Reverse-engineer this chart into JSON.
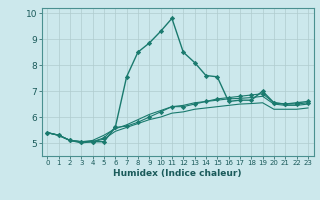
{
  "title": "",
  "xlabel": "Humidex (Indice chaleur)",
  "ylabel": "",
  "background_color": "#cce8ec",
  "grid_color": "#b8d4d8",
  "line_color": "#1a7a6e",
  "xlim": [
    -0.5,
    23.5
  ],
  "ylim": [
    4.5,
    10.2
  ],
  "xticks": [
    0,
    1,
    2,
    3,
    4,
    5,
    6,
    7,
    8,
    9,
    10,
    11,
    12,
    13,
    14,
    15,
    16,
    17,
    18,
    19,
    20,
    21,
    22,
    23
  ],
  "yticks": [
    5,
    6,
    7,
    8,
    9,
    10
  ],
  "series": [
    [
      5.4,
      5.3,
      5.1,
      5.05,
      5.05,
      5.05,
      5.6,
      7.55,
      8.5,
      8.85,
      9.3,
      9.8,
      8.5,
      8.1,
      7.6,
      7.55,
      6.6,
      6.65,
      6.65,
      7.0,
      6.55,
      6.5,
      6.55,
      6.6
    ],
    [
      5.4,
      5.3,
      5.1,
      5.05,
      5.05,
      5.2,
      5.6,
      5.65,
      5.8,
      6.0,
      6.2,
      6.4,
      6.4,
      6.5,
      6.6,
      6.7,
      6.75,
      6.8,
      6.85,
      6.9,
      6.55,
      6.5,
      6.5,
      6.55
    ],
    [
      5.4,
      5.3,
      5.1,
      5.05,
      5.1,
      5.3,
      5.55,
      5.7,
      5.9,
      6.1,
      6.25,
      6.4,
      6.45,
      6.55,
      6.6,
      6.65,
      6.7,
      6.72,
      6.75,
      6.8,
      6.5,
      6.45,
      6.45,
      6.5
    ],
    [
      5.4,
      5.3,
      5.1,
      5.0,
      5.05,
      5.15,
      5.45,
      5.6,
      5.75,
      5.9,
      6.0,
      6.15,
      6.2,
      6.3,
      6.35,
      6.4,
      6.45,
      6.5,
      6.52,
      6.55,
      6.3,
      6.3,
      6.3,
      6.35
    ]
  ],
  "series_styles": [
    {
      "marker": "D",
      "markersize": 2.2,
      "linewidth": 1.0,
      "linestyle": "-",
      "use_marker": true
    },
    {
      "marker": "D",
      "markersize": 2.2,
      "linewidth": 0.8,
      "linestyle": "-",
      "use_marker": true
    },
    {
      "marker": null,
      "markersize": 0,
      "linewidth": 0.8,
      "linestyle": "-",
      "use_marker": false
    },
    {
      "marker": null,
      "markersize": 0,
      "linewidth": 0.8,
      "linestyle": "-",
      "use_marker": false
    }
  ]
}
